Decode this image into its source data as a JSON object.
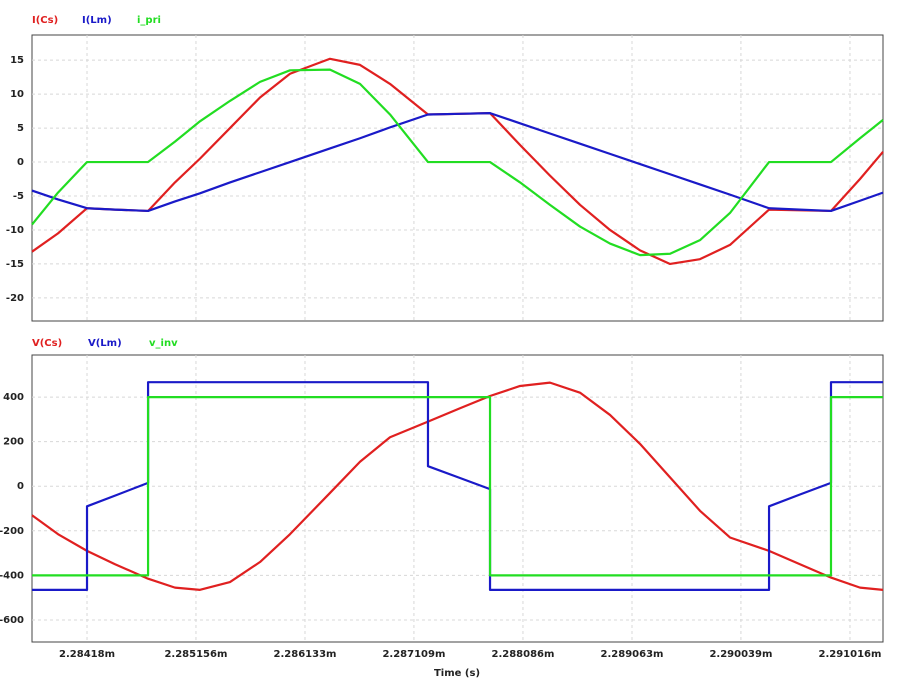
{
  "chart_data": [
    {
      "type": "line",
      "x": [
        2.283687,
        2.28392,
        2.28418,
        2.284431,
        2.284727,
        2.284968,
        2.285192,
        2.285461,
        2.28573,
        2.285999,
        2.286357,
        2.286626,
        2.286895,
        2.287235,
        2.287522,
        2.287791,
        2.28806,
        2.288328,
        2.288597,
        2.288866,
        2.289135,
        2.289404,
        2.289672,
        2.289941,
        2.290291,
        2.290568,
        2.290846,
        2.291106,
        2.291312
      ],
      "series": [
        {
          "name": "I(Cs)",
          "color": "#e02020",
          "values": [
            -13.2,
            -10.5,
            -6.8,
            -7.0,
            -7.2,
            -3,
            0.5,
            5,
            9.5,
            13,
            15.2,
            14.3,
            11.5,
            7,
            7.1,
            7.2,
            2.5,
            -2,
            -6.3,
            -10,
            -13,
            -15,
            -14.3,
            -12.2,
            -7,
            -7.1,
            -7.2,
            -2.5,
            1.5
          ]
        },
        {
          "name": "I(Lm)",
          "color": "#1a1ac8",
          "values": [
            -4.2,
            -5.5,
            -6.8,
            -7.0,
            -7.2,
            -5.8,
            -4.6,
            -3.0,
            -1.5,
            0.0,
            2.0,
            3.5,
            5.1,
            7.0,
            7.1,
            7.2,
            5.7,
            4.2,
            2.7,
            1.2,
            -0.3,
            -1.8,
            -3.3,
            -4.8,
            -6.8,
            -7.0,
            -7.2,
            -5.7,
            -4.5
          ]
        },
        {
          "name": "i_pri",
          "color": "#22dd22",
          "values": [
            -9.2,
            -4.5,
            0,
            0,
            0,
            3,
            6,
            9,
            11.8,
            13.5,
            13.6,
            11.5,
            7,
            0,
            0,
            0,
            -3,
            -6.3,
            -9.5,
            -12,
            -13.7,
            -13.5,
            -11.5,
            -7.5,
            0,
            0,
            0,
            3.5,
            6.2
          ]
        }
      ],
      "ylim": [
        -23.4,
        18.7
      ],
      "yticks": [
        15,
        10,
        5,
        0,
        -5,
        -10,
        -15,
        -20
      ],
      "grid": true
    },
    {
      "type": "line",
      "x_label": "Time (s)",
      "x": [
        2.283687,
        2.28392,
        2.28418,
        2.28418,
        2.284431,
        2.284727,
        2.284727,
        2.284968,
        2.285192,
        2.285461,
        2.28573,
        2.285999,
        2.286357,
        2.286626,
        2.286895,
        2.287235,
        2.287235,
        2.287522,
        2.287791,
        2.287791,
        2.28806,
        2.288328,
        2.288597,
        2.288866,
        2.289135,
        2.289404,
        2.289672,
        2.289941,
        2.290291,
        2.290291,
        2.290568,
        2.290846,
        2.290846,
        2.291106,
        2.291312
      ],
      "series": [
        {
          "name": "V(Cs)",
          "color": "#e02020",
          "values": [
            -130,
            -215,
            -290,
            -290,
            -350,
            -415,
            -415,
            -455,
            -465,
            -430,
            -340,
            -215,
            -30,
            110,
            220,
            290,
            290,
            350,
            405,
            405,
            450,
            465,
            420,
            320,
            190,
            40,
            -110,
            -230,
            -290,
            -290,
            -350,
            -410,
            -410,
            -455,
            -465
          ]
        },
        {
          "name": "V(Lm)",
          "color": "#1a1ac8",
          "values": [
            -465,
            -465,
            -465,
            -90,
            -42,
            15,
            467,
            467,
            467,
            467,
            467,
            467,
            467,
            467,
            467,
            467,
            90,
            37,
            -13,
            -465,
            -465,
            -465,
            -465,
            -465,
            -465,
            -465,
            -465,
            -465,
            -465,
            -90,
            -37,
            15,
            467,
            467,
            467
          ]
        },
        {
          "name": "v_inv",
          "color": "#22dd22",
          "values": [
            -400,
            -400,
            -400,
            -400,
            -400,
            -400,
            400,
            400,
            400,
            400,
            400,
            400,
            400,
            400,
            400,
            400,
            400,
            400,
            400,
            -400,
            -400,
            -400,
            -400,
            -400,
            -400,
            -400,
            -400,
            -400,
            -400,
            -400,
            -400,
            -400,
            400,
            400,
            400
          ]
        }
      ],
      "xlim": [
        2.283687,
        2.291312
      ],
      "xticks": [
        {
          "value": 2.28418,
          "label": "2.28418m"
        },
        {
          "value": 2.285156,
          "label": "2.285156m"
        },
        {
          "value": 2.286133,
          "label": "2.286133m"
        },
        {
          "value": 2.287109,
          "label": "2.287109m"
        },
        {
          "value": 2.288086,
          "label": "2.288086m"
        },
        {
          "value": 2.289063,
          "label": "2.289063m"
        },
        {
          "value": 2.290039,
          "label": "2.290039m"
        },
        {
          "value": 2.291016,
          "label": "2.291016m"
        }
      ],
      "ylim": [
        -699,
        589
      ],
      "yticks": [
        400,
        200,
        0,
        -200,
        -400,
        -600
      ],
      "grid": true
    }
  ]
}
